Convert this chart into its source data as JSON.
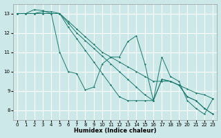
{
  "xlabel": "Humidex (Indice chaleur)",
  "xlim": [
    -0.5,
    23.5
  ],
  "ylim": [
    7.5,
    13.5
  ],
  "yticks": [
    8,
    9,
    10,
    11,
    12,
    13
  ],
  "xticks": [
    0,
    1,
    2,
    3,
    4,
    5,
    6,
    7,
    8,
    9,
    10,
    11,
    12,
    13,
    14,
    15,
    16,
    17,
    18,
    19,
    20,
    21,
    22,
    23
  ],
  "bg_color": "#cce8e8",
  "grid_color": "#ffffff",
  "line_color": "#1a7a6e",
  "zigzag": [
    13.0,
    13.0,
    13.2,
    13.15,
    13.0,
    11.0,
    10.0,
    9.9,
    9.05,
    9.2,
    10.4,
    10.75,
    10.75,
    11.55,
    11.85,
    10.4,
    8.5,
    10.75,
    9.75,
    9.5,
    8.5,
    8.1,
    7.8,
    8.6
  ],
  "line1": [
    13.0,
    13.0,
    13.0,
    13.1,
    13.1,
    13.0,
    12.6,
    12.2,
    11.8,
    11.4,
    11.0,
    10.75,
    10.5,
    10.25,
    10.0,
    9.75,
    9.5,
    9.5,
    9.5,
    9.3,
    9.1,
    8.9,
    8.8,
    8.6
  ],
  "line2": [
    13.0,
    13.0,
    13.0,
    13.0,
    13.0,
    13.0,
    12.5,
    12.0,
    11.6,
    11.2,
    10.8,
    10.4,
    10.0,
    9.6,
    9.2,
    8.8,
    8.5,
    9.6,
    9.5,
    9.3,
    8.7,
    8.5,
    8.1,
    7.8
  ],
  "line3": [
    13.0,
    13.0,
    13.0,
    13.0,
    13.0,
    13.0,
    12.3,
    11.7,
    11.1,
    10.5,
    9.9,
    9.3,
    8.7,
    8.5,
    8.5,
    8.5,
    8.5,
    9.6,
    9.5,
    9.3,
    8.7,
    8.5,
    8.1,
    7.8
  ]
}
